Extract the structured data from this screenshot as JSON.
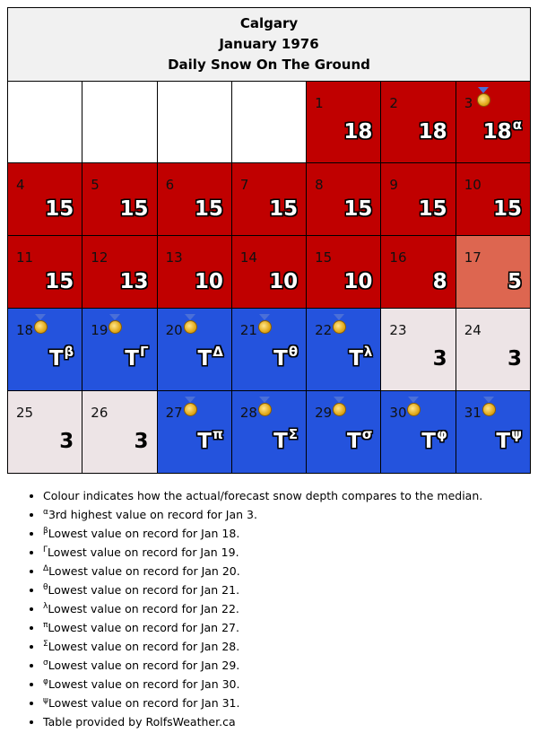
{
  "header": {
    "city": "Calgary",
    "month": "January 1976",
    "metric": "Daily Snow On The Ground"
  },
  "colors": {
    "red": "#c00000",
    "salmon": "#dd6650",
    "blue": "#2453dd",
    "pale": "#ede4e6",
    "empty": "#ffffff",
    "header_bg": "#f1f1f1"
  },
  "weeks": [
    [
      {
        "empty": true
      },
      {
        "empty": true
      },
      {
        "empty": true
      },
      {
        "empty": true
      },
      {
        "day": "1",
        "value": "18",
        "sup": "",
        "color": "red",
        "medal": false
      },
      {
        "day": "2",
        "value": "18",
        "sup": "",
        "color": "red",
        "medal": false
      },
      {
        "day": "3",
        "value": "18",
        "sup": "α",
        "color": "red",
        "medal": true
      }
    ],
    [
      {
        "day": "4",
        "value": "15",
        "sup": "",
        "color": "red",
        "medal": false
      },
      {
        "day": "5",
        "value": "15",
        "sup": "",
        "color": "red",
        "medal": false
      },
      {
        "day": "6",
        "value": "15",
        "sup": "",
        "color": "red",
        "medal": false
      },
      {
        "day": "7",
        "value": "15",
        "sup": "",
        "color": "red",
        "medal": false
      },
      {
        "day": "8",
        "value": "15",
        "sup": "",
        "color": "red",
        "medal": false
      },
      {
        "day": "9",
        "value": "15",
        "sup": "",
        "color": "red",
        "medal": false
      },
      {
        "day": "10",
        "value": "15",
        "sup": "",
        "color": "red",
        "medal": false
      }
    ],
    [
      {
        "day": "11",
        "value": "15",
        "sup": "",
        "color": "red",
        "medal": false
      },
      {
        "day": "12",
        "value": "13",
        "sup": "",
        "color": "red",
        "medal": false
      },
      {
        "day": "13",
        "value": "10",
        "sup": "",
        "color": "red",
        "medal": false
      },
      {
        "day": "14",
        "value": "10",
        "sup": "",
        "color": "red",
        "medal": false
      },
      {
        "day": "15",
        "value": "10",
        "sup": "",
        "color": "red",
        "medal": false
      },
      {
        "day": "16",
        "value": "8",
        "sup": "",
        "color": "red",
        "medal": false
      },
      {
        "day": "17",
        "value": "5",
        "sup": "",
        "color": "salmon",
        "medal": false
      }
    ],
    [
      {
        "day": "18",
        "value": "T",
        "sup": "β",
        "color": "blue",
        "medal": true
      },
      {
        "day": "19",
        "value": "T",
        "sup": "Γ",
        "color": "blue",
        "medal": true
      },
      {
        "day": "20",
        "value": "T",
        "sup": "Δ",
        "color": "blue",
        "medal": true
      },
      {
        "day": "21",
        "value": "T",
        "sup": "θ",
        "color": "blue",
        "medal": true
      },
      {
        "day": "22",
        "value": "T",
        "sup": "λ",
        "color": "blue",
        "medal": true
      },
      {
        "day": "23",
        "value": "3",
        "sup": "",
        "color": "pale",
        "medal": false
      },
      {
        "day": "24",
        "value": "3",
        "sup": "",
        "color": "pale",
        "medal": false
      }
    ],
    [
      {
        "day": "25",
        "value": "3",
        "sup": "",
        "color": "pale",
        "medal": false
      },
      {
        "day": "26",
        "value": "3",
        "sup": "",
        "color": "pale",
        "medal": false
      },
      {
        "day": "27",
        "value": "T",
        "sup": "π",
        "color": "blue",
        "medal": true
      },
      {
        "day": "28",
        "value": "T",
        "sup": "Σ",
        "color": "blue",
        "medal": true
      },
      {
        "day": "29",
        "value": "T",
        "sup": "σ",
        "color": "blue",
        "medal": true
      },
      {
        "day": "30",
        "value": "T",
        "sup": "φ",
        "color": "blue",
        "medal": true
      },
      {
        "day": "31",
        "value": "T",
        "sup": "ψ",
        "color": "blue",
        "medal": true
      }
    ]
  ],
  "notes": [
    {
      "sup": "",
      "text": "Colour indicates how the actual/forecast snow depth compares to the median."
    },
    {
      "sup": "α",
      "text": "3rd highest value on record for Jan 3."
    },
    {
      "sup": "β",
      "text": "Lowest value on record for Jan 18."
    },
    {
      "sup": "Γ",
      "text": "Lowest value on record for Jan 19."
    },
    {
      "sup": "Δ",
      "text": "Lowest value on record for Jan 20."
    },
    {
      "sup": "θ",
      "text": "Lowest value on record for Jan 21."
    },
    {
      "sup": "λ",
      "text": "Lowest value on record for Jan 22."
    },
    {
      "sup": "π",
      "text": "Lowest value on record for Jan 27."
    },
    {
      "sup": "Σ",
      "text": "Lowest value on record for Jan 28."
    },
    {
      "sup": "σ",
      "text": "Lowest value on record for Jan 29."
    },
    {
      "sup": "φ",
      "text": "Lowest value on record for Jan 30."
    },
    {
      "sup": "ψ",
      "text": "Lowest value on record for Jan 31."
    },
    {
      "sup": "",
      "text": "Table provided by RolfsWeather.ca"
    }
  ]
}
